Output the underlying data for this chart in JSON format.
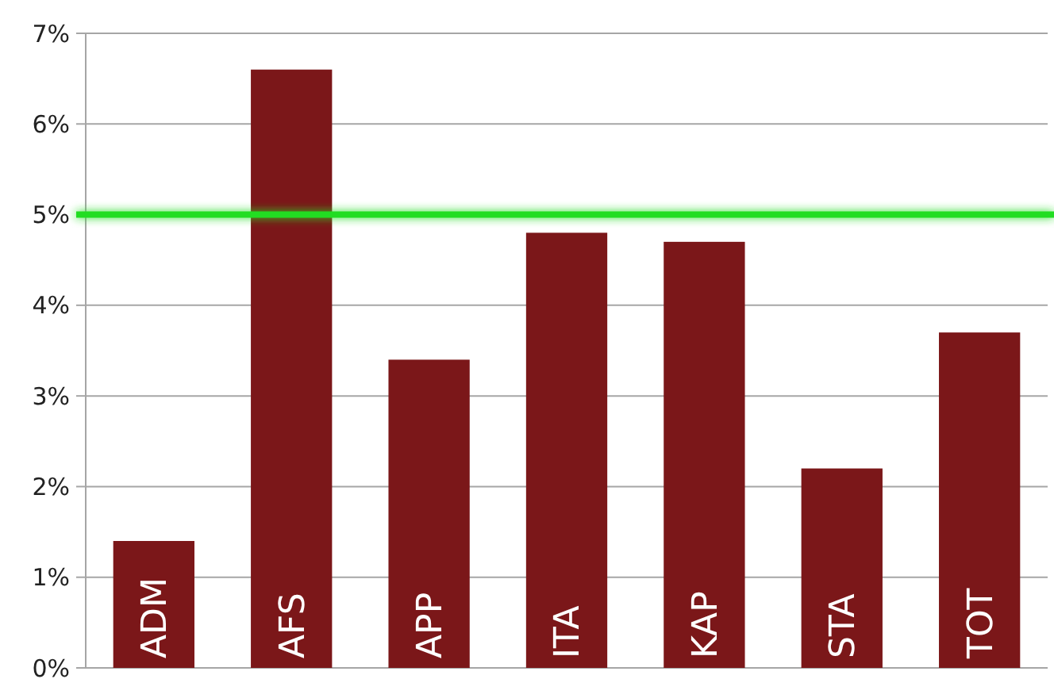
{
  "chart_data": {
    "type": "bar",
    "categories": [
      "ADM",
      "AFS",
      "APP",
      "ITA",
      "KAP",
      "STA",
      "TOT"
    ],
    "values": [
      1.4,
      6.6,
      3.4,
      4.8,
      4.7,
      2.2,
      3.7
    ],
    "color": "#7b1719",
    "ylim": [
      0,
      7
    ],
    "yticks": [
      {
        "value": 0,
        "label": "0%"
      },
      {
        "value": 1,
        "label": "1%"
      },
      {
        "value": 2,
        "label": "2%"
      },
      {
        "value": 3,
        "label": "3%"
      },
      {
        "value": 4,
        "label": "4%"
      },
      {
        "value": 5,
        "label": "5%"
      },
      {
        "value": 6,
        "label": "6%"
      },
      {
        "value": 7,
        "label": "7%"
      }
    ],
    "grid": "y",
    "ref_lines": [
      {
        "axis": "y",
        "value": 5,
        "color": "#22dd22"
      }
    ]
  }
}
